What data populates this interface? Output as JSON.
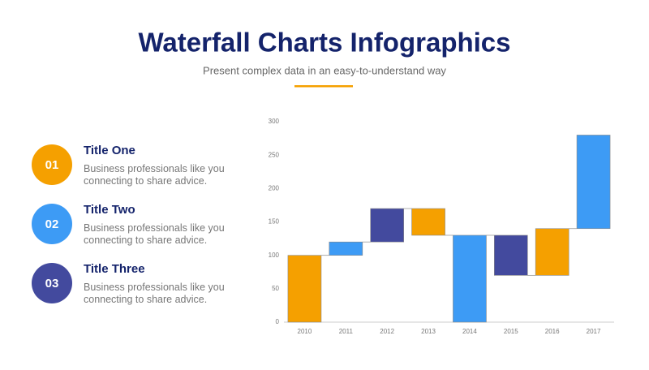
{
  "header": {
    "title": "Waterfall Charts Infographics",
    "subtitle": "Present complex data in an easy-to-understand way"
  },
  "items": [
    {
      "number": "01",
      "title": "Title One",
      "text": "Business professionals like you connecting to share advice.",
      "color": "#F5A000"
    },
    {
      "number": "02",
      "title": "Title Two",
      "text": "Business professionals like you connecting to share advice.",
      "color": "#3D9BF5"
    },
    {
      "number": "03",
      "title": "Title Three",
      "text": "Business professionals like you connecting to share advice.",
      "color": "#434A9E"
    }
  ],
  "chart_data": {
    "type": "range-bar",
    "categories": [
      "2010",
      "2011",
      "2012",
      "2013",
      "2014",
      "2015",
      "2016",
      "2017"
    ],
    "low": [
      0,
      100,
      120,
      130,
      0,
      70,
      70,
      140
    ],
    "high": [
      100,
      120,
      170,
      170,
      130,
      130,
      140,
      280
    ],
    "colors": [
      "#F5A000",
      "#3D9BF5",
      "#434A9E",
      "#F5A000",
      "#3D9BF5",
      "#434A9E",
      "#F5A000",
      "#3D9BF5"
    ],
    "ylim": [
      0,
      300
    ],
    "yticks": [
      0,
      50,
      100,
      150,
      200,
      250,
      300
    ],
    "grid": false
  }
}
